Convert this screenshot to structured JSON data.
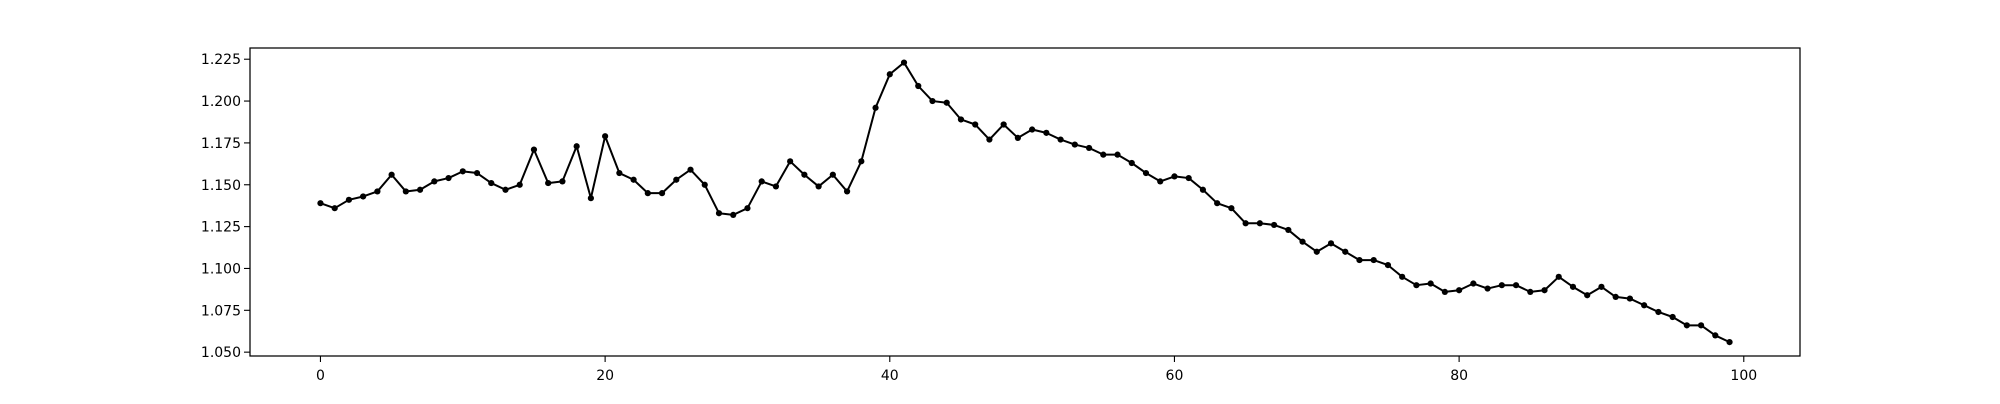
{
  "chart_data": {
    "type": "line",
    "title": "",
    "xlabel": "",
    "ylabel": "",
    "xlim": [
      -4.95,
      103.95
    ],
    "ylim": [
      1.0477,
      1.2317
    ],
    "x_ticks": [
      0,
      20,
      40,
      60,
      80,
      100
    ],
    "x_tick_labels": [
      "0",
      "20",
      "40",
      "60",
      "80",
      "100"
    ],
    "y_ticks": [
      1.05,
      1.075,
      1.1,
      1.125,
      1.15,
      1.175,
      1.2,
      1.225
    ],
    "y_tick_labels": [
      "1.050",
      "1.075",
      "1.100",
      "1.125",
      "1.150",
      "1.175",
      "1.200",
      "1.225"
    ],
    "grid": false,
    "legend": "none",
    "line_color": "#000000",
    "marker": "circle",
    "series": [
      {
        "x": [
          0,
          1,
          2,
          3,
          4,
          5,
          6,
          7,
          8,
          9,
          10,
          11,
          12,
          13,
          14,
          15,
          16,
          17,
          18,
          19,
          20,
          21,
          22,
          23,
          24,
          25,
          26,
          27,
          28,
          29,
          30,
          31,
          32,
          33,
          34,
          35,
          36,
          37,
          38,
          39,
          40,
          41,
          42,
          43,
          44,
          45,
          46,
          47,
          48,
          49,
          50,
          51,
          52,
          53,
          54,
          55,
          56,
          57,
          58,
          59,
          60,
          61,
          62,
          63,
          64,
          65,
          66,
          67,
          68,
          69,
          70,
          71,
          72,
          73,
          74,
          75,
          76,
          77,
          78,
          79,
          80,
          81,
          82,
          83,
          84,
          85,
          86,
          87,
          88,
          89,
          90,
          91,
          92,
          93,
          94,
          95,
          96,
          97,
          98,
          99
        ],
        "values": [
          1.139,
          1.136,
          1.141,
          1.143,
          1.146,
          1.156,
          1.146,
          1.147,
          1.152,
          1.154,
          1.158,
          1.157,
          1.151,
          1.147,
          1.15,
          1.171,
          1.151,
          1.152,
          1.173,
          1.142,
          1.179,
          1.157,
          1.153,
          1.145,
          1.145,
          1.153,
          1.159,
          1.15,
          1.133,
          1.132,
          1.136,
          1.152,
          1.149,
          1.164,
          1.156,
          1.149,
          1.156,
          1.146,
          1.164,
          1.196,
          1.216,
          1.223,
          1.209,
          1.2,
          1.199,
          1.189,
          1.186,
          1.177,
          1.186,
          1.178,
          1.183,
          1.181,
          1.177,
          1.174,
          1.172,
          1.168,
          1.168,
          1.163,
          1.157,
          1.152,
          1.155,
          1.154,
          1.147,
          1.139,
          1.136,
          1.127,
          1.127,
          1.126,
          1.123,
          1.116,
          1.11,
          1.115,
          1.11,
          1.105,
          1.105,
          1.102,
          1.095,
          1.09,
          1.091,
          1.086,
          1.087,
          1.091,
          1.088,
          1.09,
          1.09,
          1.086,
          1.087,
          1.095,
          1.089,
          1.084,
          1.089,
          1.083,
          1.082,
          1.078,
          1.074,
          1.071,
          1.066,
          1.066,
          1.06,
          1.056
        ]
      }
    ]
  }
}
